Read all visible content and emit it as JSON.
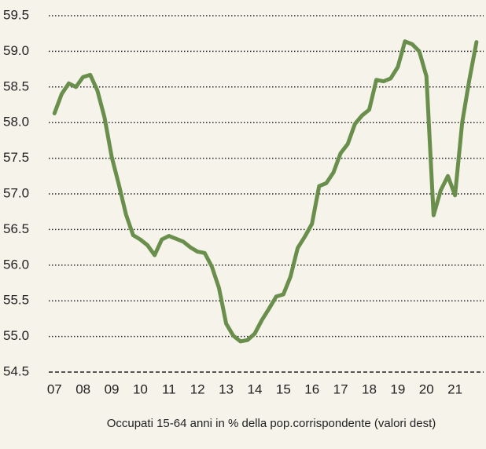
{
  "chart_data": {
    "type": "line",
    "x": [
      2007,
      2007.25,
      2007.5,
      2007.75,
      2008,
      2008.25,
      2008.5,
      2008.75,
      2009,
      2009.25,
      2009.5,
      2009.75,
      2010,
      2010.25,
      2010.5,
      2010.75,
      2011,
      2011.25,
      2011.5,
      2011.75,
      2012,
      2012.25,
      2012.5,
      2012.75,
      2013,
      2013.25,
      2013.5,
      2013.75,
      2014,
      2014.25,
      2014.5,
      2014.75,
      2015,
      2015.25,
      2015.5,
      2015.75,
      2016,
      2016.25,
      2016.5,
      2016.75,
      2017,
      2017.25,
      2017.5,
      2017.75,
      2018,
      2018.25,
      2018.5,
      2018.75,
      2019,
      2019.25,
      2019.5,
      2019.75,
      2020,
      2020.25,
      2020.5,
      2020.75,
      2021,
      2021.25,
      2021.5,
      2021.75
    ],
    "series": [
      {
        "name": "Occupati 15-64 anni in % della pop.corrispondente (valori dest)",
        "color": "#6a8f4c",
        "values": [
          58.13,
          58.4,
          58.55,
          58.5,
          58.64,
          58.67,
          58.45,
          58.07,
          57.52,
          57.13,
          56.71,
          56.42,
          56.36,
          56.28,
          56.14,
          56.36,
          56.41,
          56.37,
          56.33,
          56.25,
          56.19,
          56.17,
          55.98,
          55.68,
          55.18,
          55.01,
          54.93,
          54.95,
          55.04,
          55.23,
          55.39,
          55.56,
          55.59,
          55.84,
          56.24,
          56.4,
          56.58,
          57.11,
          57.15,
          57.3,
          57.57,
          57.7,
          57.98,
          58.1,
          58.18,
          58.6,
          58.58,
          58.62,
          58.78,
          59.14,
          59.1,
          59.0,
          58.65,
          56.7,
          57.05,
          57.25,
          56.98,
          58.0,
          58.6,
          59.13
        ]
      }
    ],
    "xlim": [
      2006.8,
      2022.0
    ],
    "xticks": [
      {
        "value": 2007,
        "label": "07"
      },
      {
        "value": 2008,
        "label": "08"
      },
      {
        "value": 2009,
        "label": "09"
      },
      {
        "value": 2010,
        "label": "10"
      },
      {
        "value": 2011,
        "label": "11"
      },
      {
        "value": 2012,
        "label": "12"
      },
      {
        "value": 2013,
        "label": "13"
      },
      {
        "value": 2014,
        "label": "14"
      },
      {
        "value": 2015,
        "label": "15"
      },
      {
        "value": 2016,
        "label": "16"
      },
      {
        "value": 2017,
        "label": "17"
      },
      {
        "value": 2018,
        "label": "18"
      },
      {
        "value": 2019,
        "label": "19"
      },
      {
        "value": 2020,
        "label": "20"
      },
      {
        "value": 2021,
        "label": "21"
      }
    ],
    "ylim": [
      54.5,
      59.5
    ],
    "yticks": [
      54.5,
      {
        "value": 55,
        "label": "55.0"
      },
      55.5,
      {
        "value": 56,
        "label": "56.0"
      },
      56.5,
      {
        "value": 57,
        "label": "57.0"
      },
      57.5,
      {
        "value": 58,
        "label": "58.0"
      },
      58.5,
      {
        "value": 59,
        "label": "59.0"
      },
      59.5
    ],
    "grid": true
  }
}
